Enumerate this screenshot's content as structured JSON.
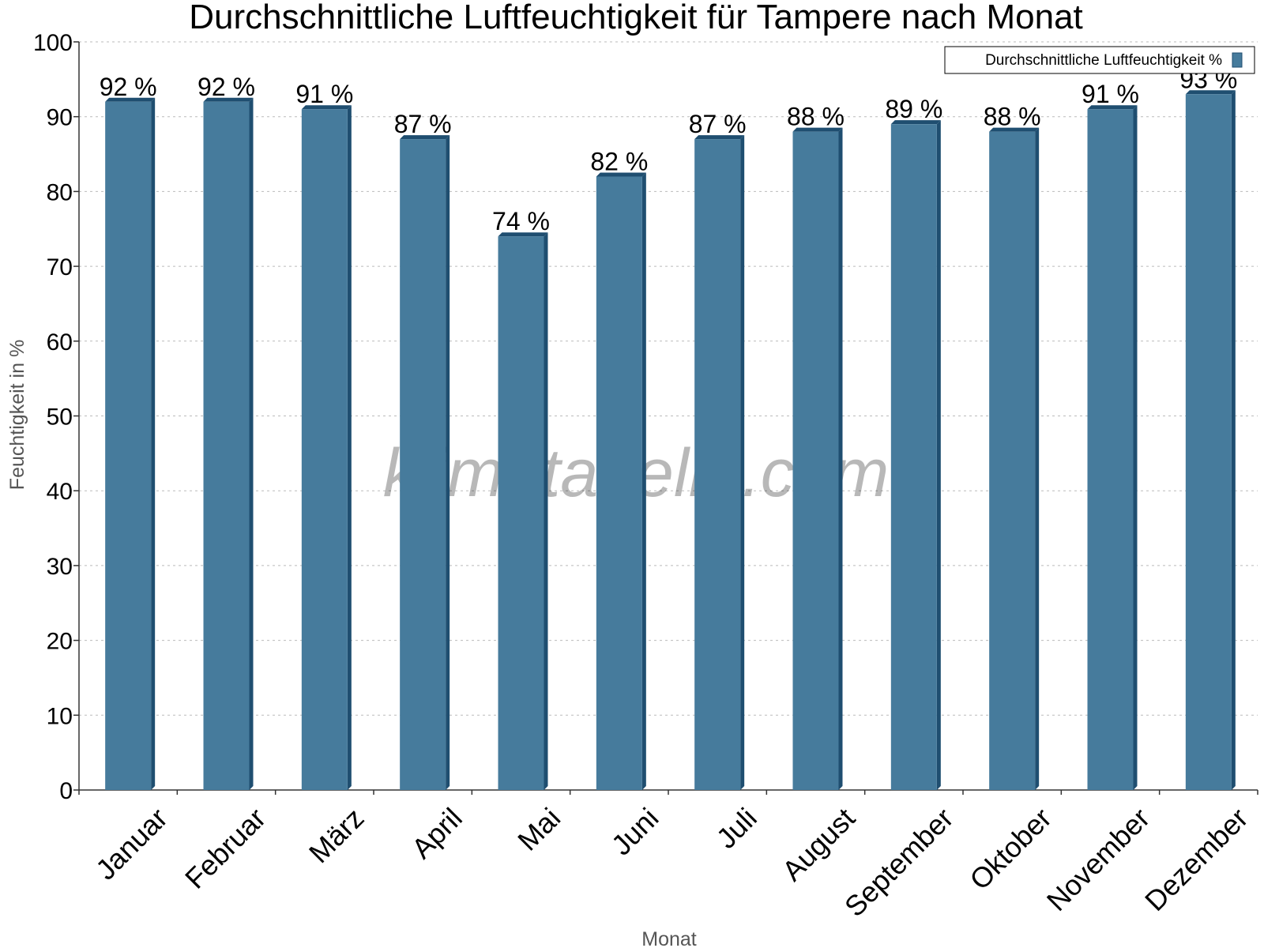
{
  "chart_data": {
    "type": "bar",
    "title": "Durchschnittliche Luftfeuchtigkeit für Tampere nach Monat",
    "xlabel": "Monat",
    "ylabel": "Feuchtigkeit in %",
    "ylim": [
      0,
      100
    ],
    "yticks": [
      "0",
      "10",
      "20",
      "30",
      "40",
      "50",
      "60",
      "70",
      "80",
      "90",
      "100"
    ],
    "grid": true,
    "legend_position": "top-right",
    "categories": [
      "Januar",
      "Februar",
      "März",
      "April",
      "Mai",
      "Juni",
      "Juli",
      "August",
      "September",
      "Oktober",
      "November",
      "Dezember"
    ],
    "series": [
      {
        "name": "Durchschnittliche Luftfeuchtigkeit %",
        "values": [
          92,
          92,
          91,
          87,
          74,
          82,
          87,
          88,
          89,
          88,
          91,
          93
        ],
        "labels": [
          "92 %",
          "92 %",
          "91 %",
          "87 %",
          "74 %",
          "82 %",
          "87 %",
          "88 %",
          "89 %",
          "88 %",
          "91 %",
          "93 %"
        ],
        "color": "#467b9c",
        "shade_color": "#1f4e70"
      }
    ],
    "watermark": "klimatabelle.com"
  }
}
